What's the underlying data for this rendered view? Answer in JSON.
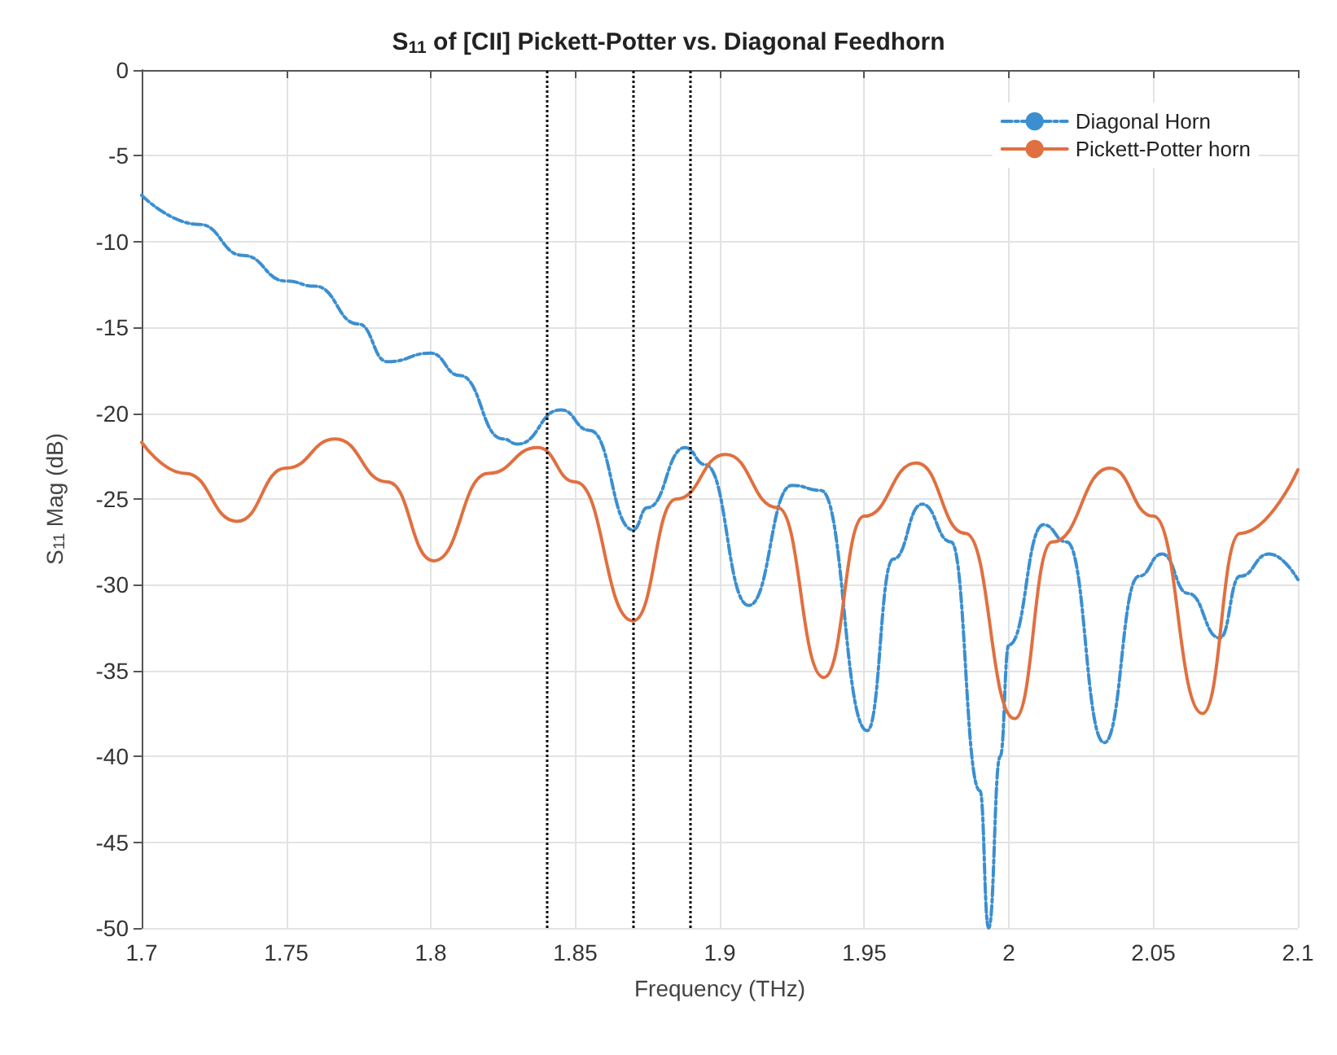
{
  "chart_data": {
    "type": "line",
    "title": "S$_{11}$ of [CII] Pickett-Potter vs. Diagonal Feedhorn",
    "xlabel": "Frequency (THz)",
    "ylabel": "S$_{11}$ Mag (dB)",
    "xlim": [
      1.7,
      2.1
    ],
    "xticks": [
      1.7,
      1.75,
      1.8,
      1.85,
      1.9,
      1.95,
      2,
      2.05,
      2.1
    ],
    "ylim": [
      -50,
      0
    ],
    "yticks": [
      -50,
      -45,
      -40,
      -35,
      -30,
      -25,
      -20,
      -15,
      -10,
      -5,
      0
    ],
    "grid": true,
    "legend": "top right",
    "series": [
      {
        "name": "Diagonal Horn",
        "color": "#3b8fd0",
        "line_style": "dashed",
        "x": [
          1.7,
          1.72,
          1.735,
          1.75,
          1.76,
          1.775,
          1.785,
          1.8,
          1.81,
          1.825,
          1.83,
          1.845,
          1.855,
          1.87,
          1.875,
          1.888,
          1.895,
          1.91,
          1.925,
          1.935,
          1.951,
          1.96,
          1.97,
          1.98,
          1.99,
          1.993,
          1.997,
          2.0,
          2.012,
          2.02,
          2.033,
          2.045,
          2.053,
          2.062,
          2.073,
          2.08,
          2.09,
          2.1
        ],
        "values": [
          -7.3,
          -9,
          -10.8,
          -12.3,
          -12.6,
          -14.8,
          -17,
          -16.5,
          -17.8,
          -21.5,
          -21.8,
          -19.8,
          -21,
          -26.8,
          -25.5,
          -22,
          -23,
          -31.2,
          -24.2,
          -24.5,
          -38.5,
          -28.5,
          -25.3,
          -27.5,
          -42,
          -50,
          -40,
          -33.5,
          -26.5,
          -27.5,
          -39.2,
          -29.5,
          -28.2,
          -30.5,
          -33.1,
          -29.5,
          -28.2,
          -29.7
        ]
      },
      {
        "name": "Pickett-Potter horn",
        "color": "#e07040",
        "line_style": "solid",
        "x": [
          1.7,
          1.715,
          1.733,
          1.75,
          1.767,
          1.785,
          1.801,
          1.82,
          1.837,
          1.85,
          1.87,
          1.885,
          1.902,
          1.92,
          1.936,
          1.95,
          1.968,
          1.985,
          2.002,
          2.015,
          2.035,
          2.05,
          2.067,
          2.08,
          2.1
        ],
        "values": [
          -21.7,
          -23.5,
          -26.3,
          -23.2,
          -21.5,
          -24,
          -28.6,
          -23.5,
          -22,
          -24,
          -32.1,
          -25,
          -22.4,
          -25.5,
          -35.4,
          -26,
          -22.9,
          -27,
          -37.8,
          -27.5,
          -23.2,
          -26,
          -37.5,
          -27,
          -23.3
        ]
      }
    ],
    "ref_lines": [
      {
        "axis": "x",
        "value": 1.84,
        "color": "#000000",
        "line_style": "dotted"
      },
      {
        "axis": "x",
        "value": 1.87,
        "color": "#000000",
        "line_style": "dotted"
      },
      {
        "axis": "x",
        "value": 1.89,
        "color": "#000000",
        "line_style": "dotted"
      }
    ]
  }
}
